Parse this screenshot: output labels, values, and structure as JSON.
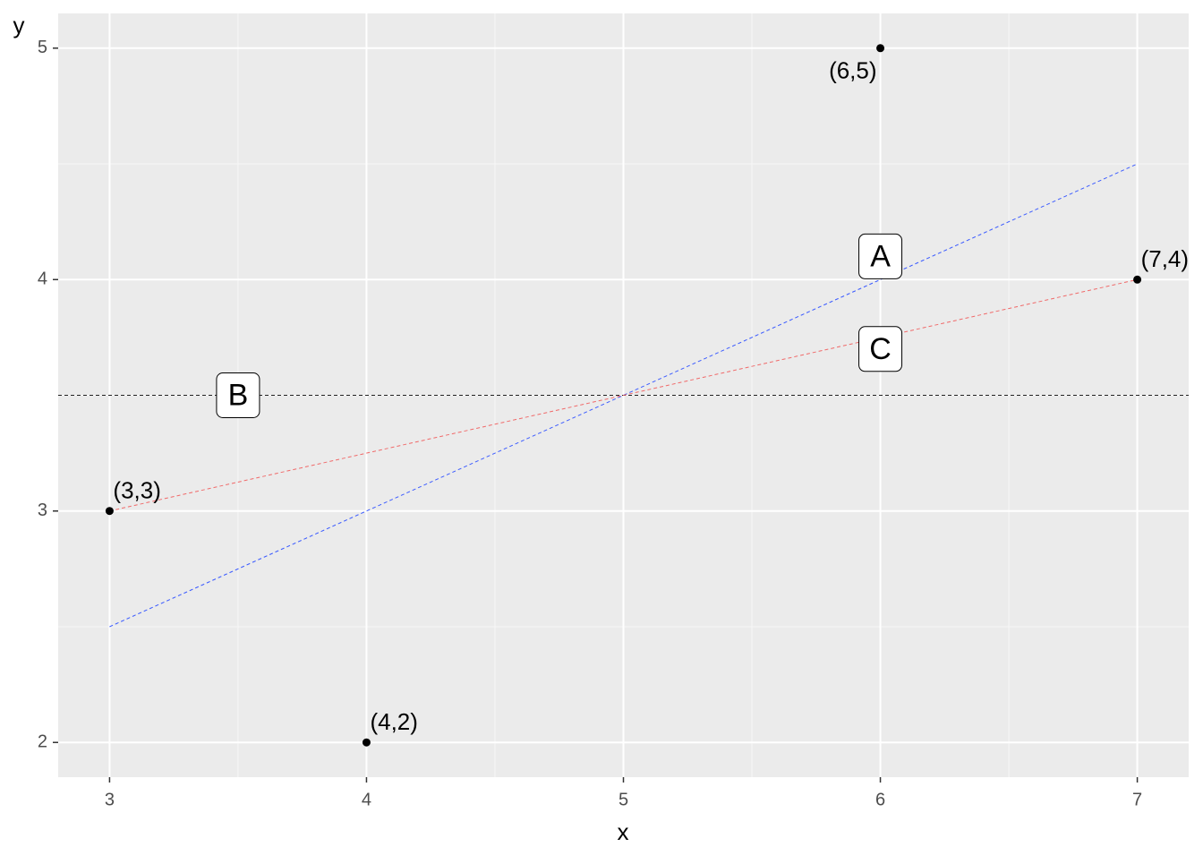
{
  "chart_data": {
    "type": "scatter",
    "x_label": "x",
    "y_label": "y",
    "x": [
      3,
      4,
      6,
      7
    ],
    "y": [
      3,
      2,
      5,
      4
    ],
    "value_labels": [
      "(3,3)",
      "(4,2)",
      "(6,5)",
      "(7,4)"
    ],
    "color": "#000000",
    "xlim": [
      2.8,
      7.2
    ],
    "ylim": [
      1.85,
      5.15
    ],
    "xticks": [
      3,
      4,
      5,
      6,
      7
    ],
    "yticks": [
      2,
      3,
      4,
      5
    ],
    "xminor": [
      3.5,
      4.5,
      5.5,
      6.5
    ],
    "yminor": [
      2.5,
      3.5,
      4.5
    ],
    "grid": true,
    "lines": [
      {
        "x": [
          3,
          7
        ],
        "y": [
          2.5,
          4.5
        ],
        "color": "#3b5bff"
      },
      {
        "x": [
          3,
          7
        ],
        "y": [
          3,
          4
        ],
        "color": "#f06a6a"
      }
    ],
    "hline": 3.5,
    "hline_color": "#222222",
    "annotations": [
      {
        "label": "A",
        "x": 6,
        "y": 4.1
      },
      {
        "label": "B",
        "x": 3.5,
        "y": 3.5
      },
      {
        "label": "C",
        "x": 6,
        "y": 3.7
      }
    ]
  }
}
